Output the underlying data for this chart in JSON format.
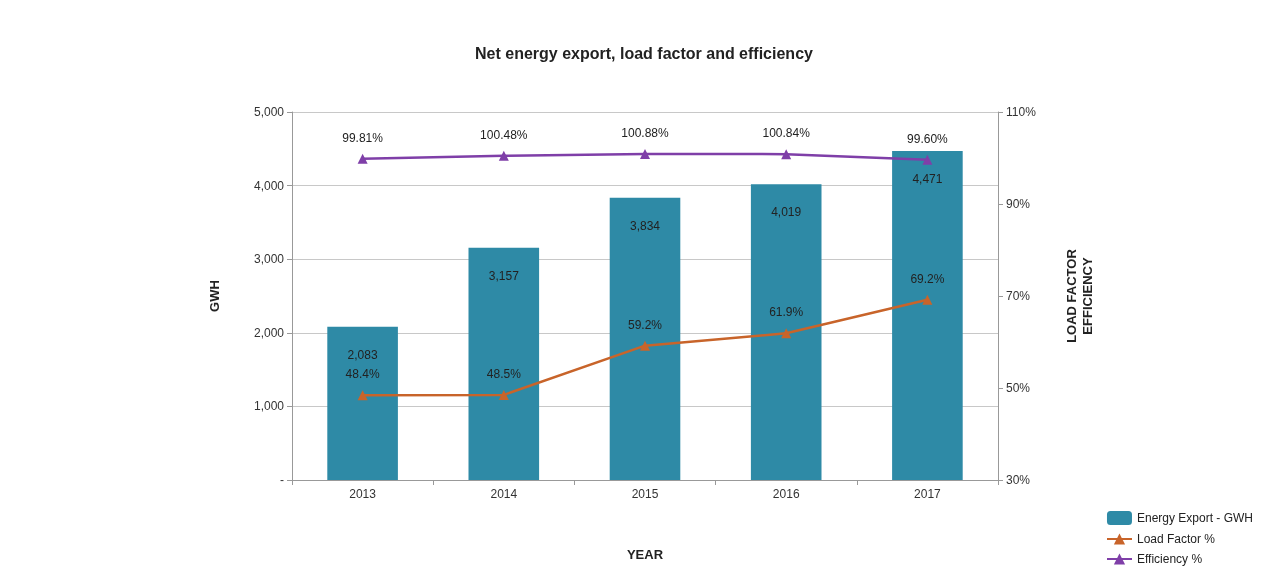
{
  "chart_data": {
    "type": "bar",
    "title": "Net energy export, load factor and efficiency",
    "xlabel": "YEAR",
    "ylabel": "GWH",
    "y2label": "LOAD FACTOR\nEFFICIENCY",
    "categories": [
      "2013",
      "2014",
      "2015",
      "2016",
      "2017"
    ],
    "series": [
      {
        "name": "Energy Export - GWH",
        "color": "#2e8aa6",
        "values": [
          2083,
          3157,
          3834,
          4019,
          4471
        ],
        "value_labels": [
          "2,083",
          "3,157",
          "3,834",
          "4,019",
          "4,471"
        ]
      },
      {
        "name": "Load Factor %",
        "type": "line",
        "axis": "y2",
        "color": "#c8642a",
        "marker": "triangle",
        "values": [
          48.4,
          48.5,
          59.2,
          61.9,
          69.2
        ],
        "value_labels": [
          "48.4%",
          "48.5%",
          "59.2%",
          "61.9%",
          "69.2%"
        ]
      },
      {
        "name": "Efficiency %",
        "type": "line",
        "axis": "y2",
        "color": "#7f3fa8",
        "marker": "triangle",
        "values": [
          99.81,
          100.48,
          100.88,
          100.84,
          99.6
        ],
        "value_labels": [
          "99.81%",
          "100.48%",
          "100.88%",
          "100.84%",
          "99.60%"
        ]
      }
    ],
    "ylim": [
      0,
      5000
    ],
    "yticks": [
      {
        "value": 0,
        "label": "-"
      },
      {
        "value": 1000,
        "label": "1,000"
      },
      {
        "value": 2000,
        "label": "2,000"
      },
      {
        "value": 3000,
        "label": "3,000"
      },
      {
        "value": 4000,
        "label": "4,000"
      },
      {
        "value": 5000,
        "label": "5,000"
      }
    ],
    "y2lim": [
      30,
      110
    ],
    "y2ticks": [
      {
        "value": 30,
        "label": "30%"
      },
      {
        "value": 50,
        "label": "50%"
      },
      {
        "value": 70,
        "label": "70%"
      },
      {
        "value": 90,
        "label": "90%"
      },
      {
        "value": 110,
        "label": "110%"
      }
    ],
    "grid": "y",
    "legend": "bottom right"
  }
}
